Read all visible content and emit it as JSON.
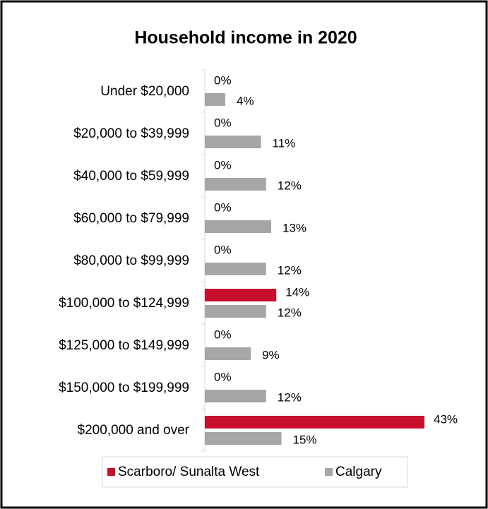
{
  "chart_data": {
    "type": "bar",
    "orientation": "horizontal",
    "title": "Household income in 2020",
    "categories": [
      "Under $20,000",
      "$20,000 to $39,999",
      "$40,000 to $59,999",
      "$60,000 to $79,999",
      "$80,000 to $99,999",
      "$100,000 to $124,999",
      "$125,000 to $149,999",
      "$150,000 to $199,999",
      "$200,000 and over"
    ],
    "series": [
      {
        "name": "Scarboro/ Sunalta West",
        "color": "#c8102e",
        "values": [
          0,
          0,
          0,
          0,
          0,
          14,
          0,
          0,
          43
        ],
        "value_labels": [
          "0%",
          "0%",
          "0%",
          "0%",
          "0%",
          "14%",
          "0%",
          "0%",
          "43%"
        ]
      },
      {
        "name": "Calgary",
        "color": "#a6a6a6",
        "values": [
          4,
          11,
          12,
          13,
          12,
          12,
          9,
          12,
          15
        ],
        "value_labels": [
          "4%",
          "11%",
          "12%",
          "13%",
          "12%",
          "12%",
          "9%",
          "12%",
          "15%"
        ]
      }
    ],
    "legend": "bottom"
  }
}
